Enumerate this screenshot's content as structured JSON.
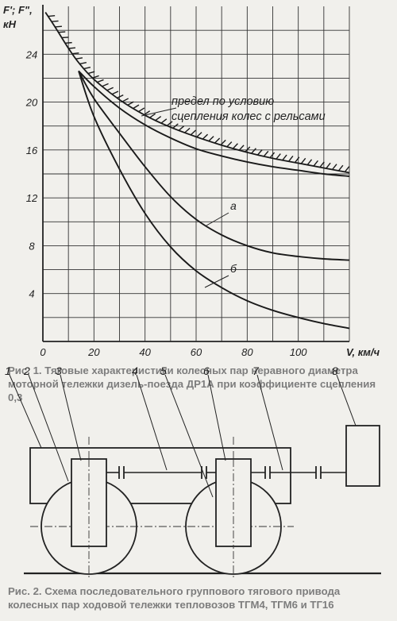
{
  "figure1": {
    "chart_data": {
      "type": "line",
      "xlabel": "V, км/ч",
      "ylabel_line1": "F'; F\",",
      "ylabel_line2": "кН",
      "xlim": [
        0,
        120
      ],
      "ylim": [
        0,
        28
      ],
      "x_ticks": [
        "0",
        "20",
        "40",
        "60",
        "80",
        "100"
      ],
      "y_ticks": [
        "4",
        "8",
        "12",
        "16",
        "20",
        "24"
      ],
      "grid": true,
      "series": [
        {
          "id": "limit",
          "style": "hatched",
          "x": [
            1,
            5,
            10,
            14,
            20,
            30,
            40,
            50,
            60,
            70,
            80,
            90,
            100,
            110,
            120
          ],
          "y": [
            27.5,
            26.2,
            24.5,
            23.3,
            21.9,
            20.2,
            18.9,
            17.9,
            17.1,
            16.4,
            15.8,
            15.3,
            14.9,
            14.5,
            14.1
          ]
        },
        {
          "id": "limit-solid",
          "x": [
            14,
            20,
            30,
            40,
            50,
            60,
            70,
            80,
            90,
            100,
            110,
            120
          ],
          "y": [
            22.6,
            21.3,
            19.5,
            18.1,
            17.0,
            16.1,
            15.5,
            15.0,
            14.6,
            14.3,
            14.0,
            13.8
          ]
        },
        {
          "name": "а",
          "x": [
            14,
            20,
            30,
            40,
            50,
            60,
            70,
            80,
            90,
            100,
            110,
            120
          ],
          "y": [
            22.6,
            20.3,
            17.4,
            14.6,
            12.1,
            10.2,
            8.9,
            8.0,
            7.4,
            7.1,
            6.9,
            6.8
          ]
        },
        {
          "name": "б",
          "x": [
            14,
            20,
            30,
            40,
            50,
            60,
            70,
            80,
            90,
            100,
            110,
            120
          ],
          "y": [
            22.6,
            18.8,
            14.4,
            10.7,
            7.9,
            5.9,
            4.5,
            3.4,
            2.6,
            2.0,
            1.5,
            1.1
          ]
        }
      ],
      "annotation_line1": "предел по условию",
      "annotation_line2": "сцепления колес с рельсами"
    },
    "caption": "Рис. 1. Тяговые характеристики колесных пар неравного диаметра моторной тележки дизель-поезда ДР1А при коэффициенте сцепления 0,3"
  },
  "figure2": {
    "numbers": [
      "1",
      "2",
      "3",
      "4",
      "5",
      "6",
      "7",
      "8"
    ],
    "caption": "Рис. 2. Схема последовательного группового тягового привода колесных пар ходовой тележки тепловозов ТГМ4, ТГМ6 и ТГ16"
  }
}
